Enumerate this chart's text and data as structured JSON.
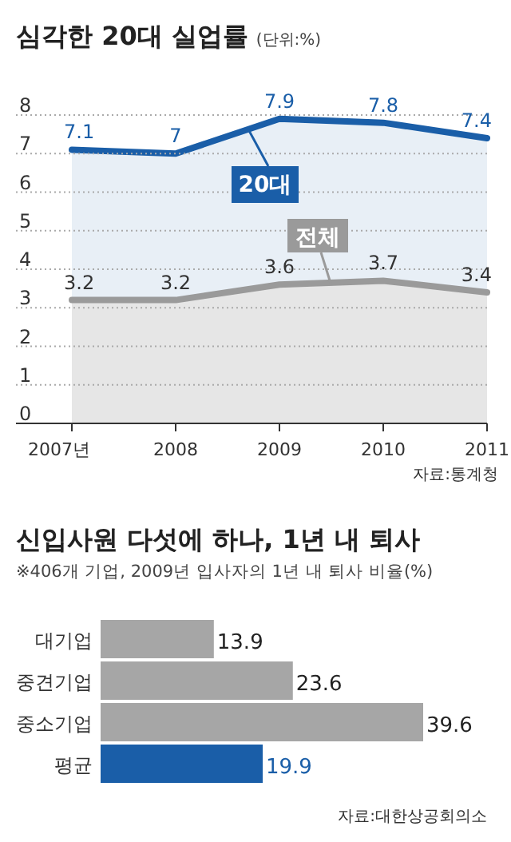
{
  "chart_data": [
    {
      "type": "area",
      "title": "심각한 20대 실업률",
      "subtitle": "(단위:%)",
      "categories": [
        "2007년",
        "2008",
        "2009",
        "2010",
        "2011"
      ],
      "series": [
        {
          "name": "20대",
          "color": "#1a5ea8",
          "values": [
            7.1,
            7,
            7.9,
            7.8,
            7.4
          ]
        },
        {
          "name": "전체",
          "color": "#9a9a9a",
          "values": [
            3.2,
            3.2,
            3.6,
            3.7,
            3.4
          ]
        }
      ],
      "ylim": [
        0,
        8
      ],
      "yticks": [
        0,
        1,
        2,
        3,
        4,
        5,
        6,
        7,
        8
      ],
      "grid": "y",
      "data_labels": true,
      "legend": "center",
      "annotations": [
        "자료:통계청"
      ]
    },
    {
      "type": "bar",
      "orientation": "horizontal",
      "title": "신입사원 다섯에 하나, 1년 내 퇴사",
      "subtitle": "※406개 기업, 2009년 입사자의 1년 내 퇴사 비율(%)",
      "categories": [
        "대기업",
        "중견기업",
        "중소기업",
        "평균"
      ],
      "values": [
        13.9,
        23.6,
        39.6,
        19.9
      ],
      "colors": [
        "#a6a6a6",
        "#a6a6a6",
        "#a6a6a6",
        "#1a5ea8"
      ],
      "data_labels": true,
      "annotations": [
        "자료:대한상공회의소"
      ]
    }
  ]
}
